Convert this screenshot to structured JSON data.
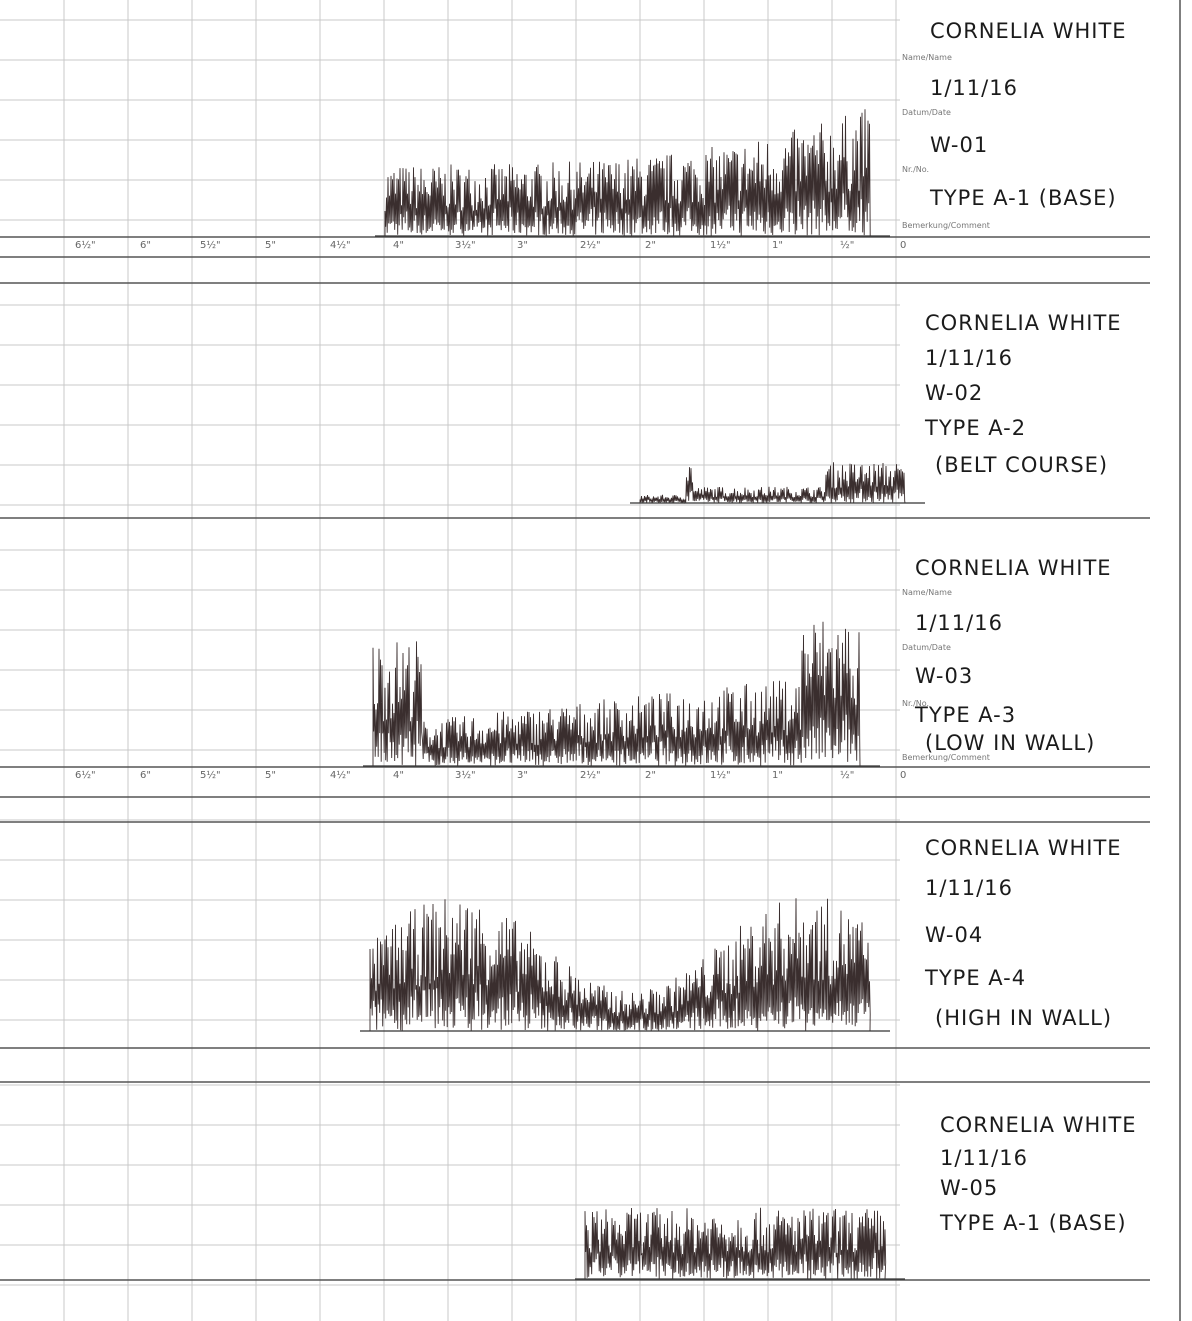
{
  "field_labels": {
    "name": "Name/Name",
    "date": "Datum/Date",
    "number": "Nr./No.",
    "comment": "Bemerkung/Comment"
  },
  "ruler_labels": [
    "6½\"",
    "6\"",
    "5½\"",
    "5\"",
    "4½\"",
    "4\"",
    "3½\"",
    "3\"",
    "2½\"",
    "2\"",
    "1½\"",
    "1\"",
    "½\"",
    "0"
  ],
  "strips": [
    {
      "name": "CORNELIA WHITE",
      "date": "1/11/16",
      "number": "W-01",
      "type": "TYPE A-1 (BASE)"
    },
    {
      "name": "CORNELIA WHITE",
      "date": "1/11/16",
      "number": "W-02",
      "type": "TYPE A-2",
      "note": "(BELT COURSE)"
    },
    {
      "name": "CORNELIA WHITE",
      "date": "1/11/16",
      "number": "W-03",
      "type": "TYPE A-3",
      "note": "(LOW IN WALL)"
    },
    {
      "name": "CORNELIA WHITE",
      "date": "1/11/16",
      "number": "W-04",
      "type": "TYPE A-4",
      "note": "(HIGH IN WALL)"
    },
    {
      "name": "CORNELIA WHITE",
      "date": "1/11/16",
      "number": "W-05",
      "type": "TYPE A-1 (BASE)"
    }
  ]
}
